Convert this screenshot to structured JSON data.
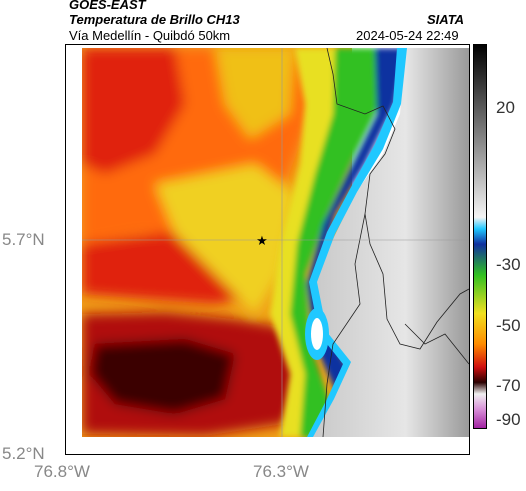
{
  "header": {
    "satellite": "GOES-EAST",
    "product": "Temperatura de Brillo CH13",
    "region": "Vía Medellín - Quibdó 50km",
    "agency": "SIATA",
    "datetime": "2024-05-24 22:49"
  },
  "map": {
    "lat_labels": [
      "5.7°N",
      "5.2°N"
    ],
    "lon_labels": [
      "76.8°W",
      "76.3°W"
    ],
    "marker_icon": "star-icon",
    "colors": {
      "coldest": "#2a0000",
      "warm_land": "#d0d0d0",
      "cloud_red": "#e02010",
      "cloud_orange": "#ff8c00",
      "cloud_yellow": "#f0e020",
      "cloud_green": "#30c020",
      "cloud_blue": "#1030a0",
      "cloud_cyan": "#20d0ff"
    }
  },
  "colorbar": {
    "labels": [
      "20",
      "-30",
      "-50",
      "-70",
      "-90"
    ]
  }
}
